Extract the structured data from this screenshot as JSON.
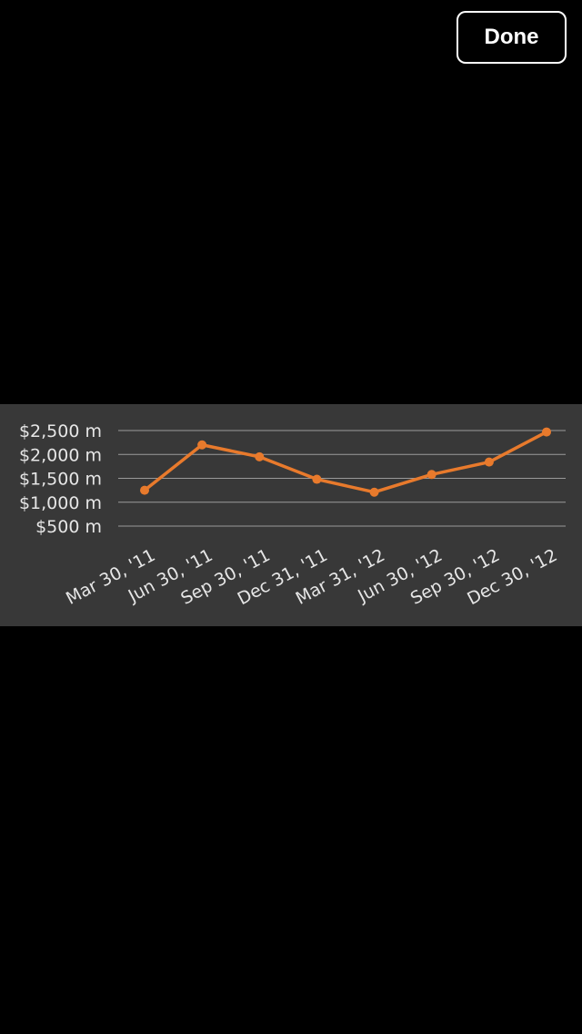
{
  "toolbar": {
    "done_label": "Done"
  },
  "colors": {
    "background": "#000000",
    "panel": "#383838",
    "line": "#e87a2c",
    "grid": "#9a9a9a",
    "text": "#e6e6e6"
  },
  "chart_data": {
    "type": "line",
    "title": "",
    "xlabel": "",
    "ylabel": "",
    "categories": [
      "Mar 30, '11",
      "Jun 30, '11",
      "Sep 30, '11",
      "Dec 31, '11",
      "Mar 31, '12",
      "Jun 30, '12",
      "Sep 30, '12",
      "Dec 30, '12"
    ],
    "series": [
      {
        "values": [
          1250,
          2200,
          1950,
          1480,
          1210,
          1580,
          1840,
          2470
        ]
      }
    ],
    "y_ticks": [
      2500,
      2000,
      1500,
      1000,
      500
    ],
    "y_tick_labels": [
      "$2,500 m",
      "$2,000 m",
      "$1,500 m",
      "$1,000 m",
      "$500 m"
    ],
    "ylim": [
      500,
      2500
    ],
    "grid": true,
    "legend": "none"
  }
}
